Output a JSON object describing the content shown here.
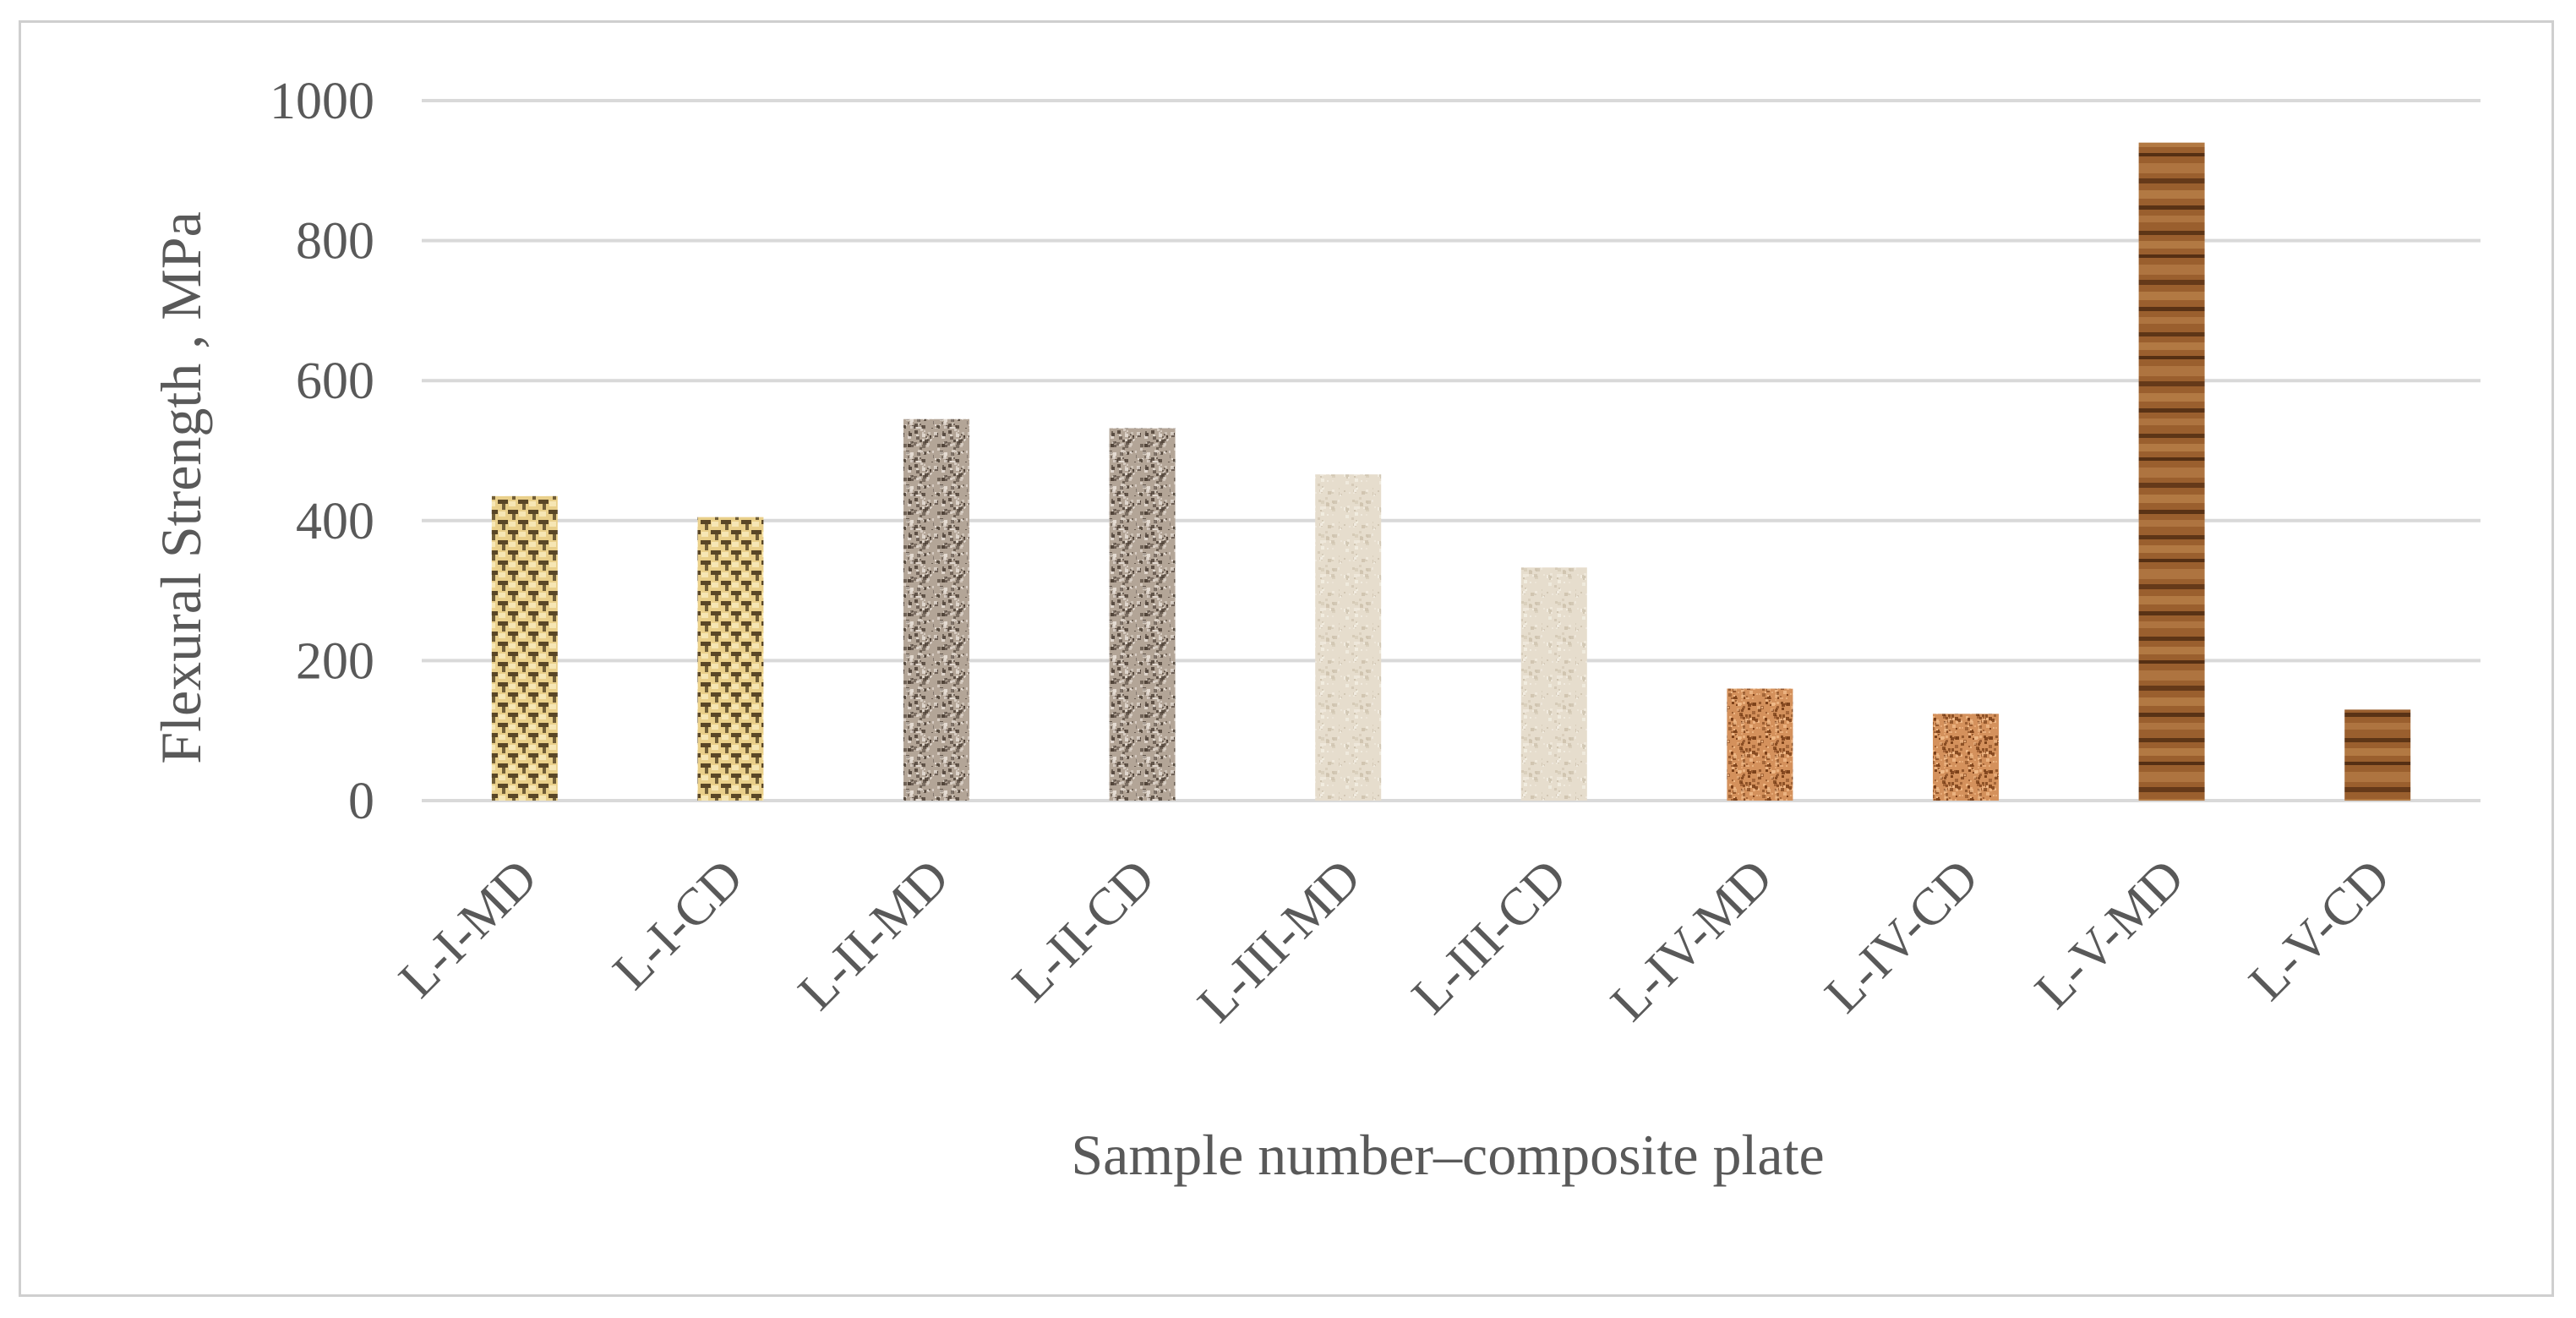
{
  "chart_data": {
    "type": "bar",
    "title": "",
    "xlabel": "Sample number–composite plate",
    "ylabel": "Flexural Strength , MPa",
    "categories": [
      "L-I-MD",
      "L-I-CD",
      "L-II-MD",
      "L-II-CD",
      "L-III-MD",
      "L-III-CD",
      "L-IV-MD",
      "L-IV-CD",
      "L-V-MD",
      "L-V-CD"
    ],
    "series": [
      {
        "values": [
          435,
          405,
          545,
          532,
          466,
          333,
          160,
          124,
          940,
          130
        ]
      }
    ],
    "ylim": [
      0,
      1000
    ],
    "yticks": [
      0,
      200,
      400,
      600,
      800,
      1000
    ],
    "grid": true,
    "legend": "none",
    "gridline_color": "#d9d9d9",
    "axis_text_color": "#595959",
    "bar_textures": [
      {
        "name": "beige-checker",
        "base": "#e9cf8a",
        "dark": "#3f2e14",
        "light": "#f6e6b4"
      },
      {
        "name": "beige-checker",
        "base": "#e9cf8a",
        "dark": "#3f2e14",
        "light": "#f6e6b4"
      },
      {
        "name": "gray-speckle",
        "base": "#b3a597",
        "dark": "#4a3d33",
        "light": "#e4dbd2"
      },
      {
        "name": "gray-speckle",
        "base": "#b3a597",
        "dark": "#4a3d33",
        "light": "#e4dbd2"
      },
      {
        "name": "cream-paper",
        "base": "#e6ddcd",
        "dark": "#cfc4b0",
        "light": "#f2ece0"
      },
      {
        "name": "cream-paper",
        "base": "#e6ddcd",
        "dark": "#cfc4b0",
        "light": "#f2ece0"
      },
      {
        "name": "orange-granite",
        "base": "#d4915c",
        "dark": "#7a3f18",
        "light": "#f0b987"
      },
      {
        "name": "orange-granite",
        "base": "#d4915c",
        "dark": "#7a3f18",
        "light": "#f0b987"
      },
      {
        "name": "wood-grain",
        "base": "#9a5f2e",
        "dark": "#4e2a10",
        "light": "#c18a52"
      },
      {
        "name": "wood-grain",
        "base": "#9a5f2e",
        "dark": "#4e2a10",
        "light": "#c18a52"
      }
    ]
  }
}
